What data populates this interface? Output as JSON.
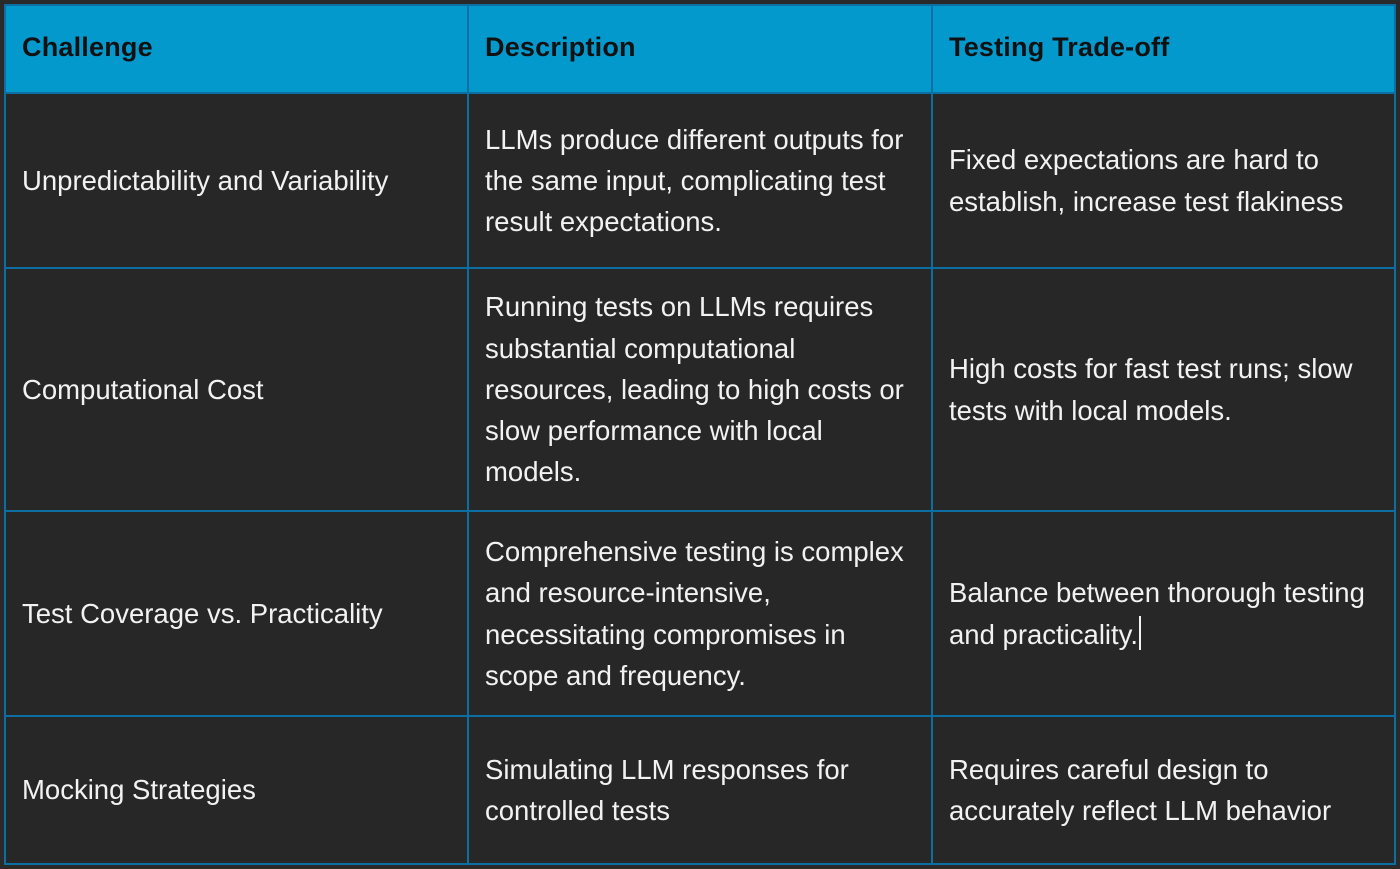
{
  "table": {
    "headers": [
      "Challenge",
      "Description",
      "Testing Trade-off"
    ],
    "rows": [
      {
        "challenge": "Unpredictability and Variability",
        "description": "LLMs produce different outputs for the same input, complicating test result expectations.",
        "tradeoff": "Fixed expectations are hard to establish, increase test flakiness"
      },
      {
        "challenge": "Computational Cost",
        "description": "Running tests on LLMs requires substantial computational resources, leading to high costs or slow performance with local models.",
        "tradeoff": "High costs for fast test runs; slow tests with local models."
      },
      {
        "challenge": "Test Coverage vs. Practicality",
        "description": "Comprehensive testing is complex and resource-intensive, necessitating compromises in scope and frequency.",
        "tradeoff": "Balance between thorough testing and practicality."
      },
      {
        "challenge": "Mocking Strategies",
        "description": "Simulating LLM responses for controlled tests",
        "tradeoff": "Requires careful design to accurately reflect LLM behavior"
      }
    ]
  },
  "colors": {
    "header_bg": "#0399cd",
    "header_text": "#111111",
    "cell_bg": "#272727",
    "cell_text": "#f2f2f2",
    "border": "#0b6fa3"
  }
}
